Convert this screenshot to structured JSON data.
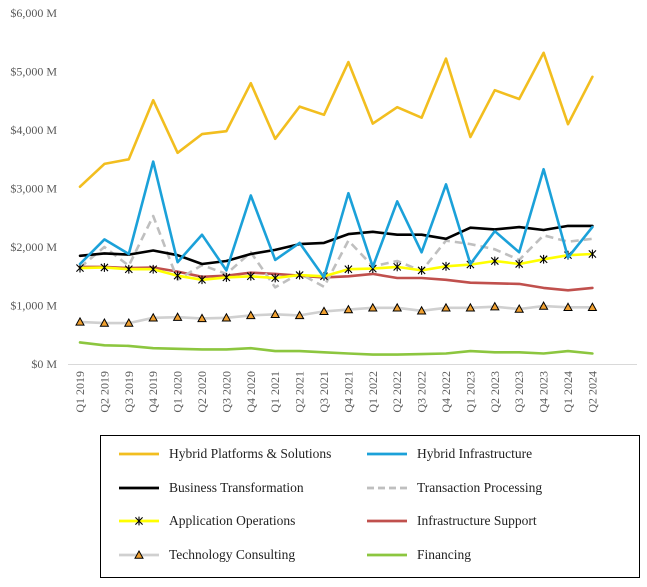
{
  "chart_data": {
    "type": "line",
    "title": "",
    "xlabel": "",
    "ylabel": "",
    "ylim": [
      0,
      6000
    ],
    "yticks": [
      0,
      1000,
      2000,
      3000,
      4000,
      5000,
      6000
    ],
    "ytick_labels": [
      "$0 M",
      "$1,000 M",
      "$2,000 M",
      "$3,000 M",
      "$4,000 M",
      "$5,000 M",
      "$6,000 M"
    ],
    "grid": false,
    "legend_position": "bottom",
    "categories": [
      "Q1 2019",
      "Q2 2019",
      "Q3 2019",
      "Q4 2019",
      "Q1 2020",
      "Q2 2020",
      "Q3 2020",
      "Q4 2020",
      "Q1 2021",
      "Q2 2021",
      "Q3 2021",
      "Q4 2021",
      "Q1 2022",
      "Q2 2022",
      "Q3 2022",
      "Q4 2022",
      "Q1 2023",
      "Q2 2023",
      "Q3 2023",
      "Q4 2023",
      "Q1 2024",
      "Q2 2024"
    ],
    "series": [
      {
        "name": "Hybrid Platforms & Solutions",
        "color": "#F2BE1F",
        "style": "solid",
        "marker": "none",
        "values": [
          3030,
          3420,
          3500,
          4510,
          3610,
          3930,
          3980,
          4800,
          3850,
          4400,
          4260,
          5160,
          4110,
          4390,
          4210,
          5220,
          3880,
          4680,
          4530,
          5320,
          4100,
          4910
        ]
      },
      {
        "name": "Hybrid Infrastructure",
        "color": "#1BA1D9",
        "style": "solid",
        "marker": "none",
        "values": [
          1710,
          2130,
          1880,
          3460,
          1740,
          2210,
          1600,
          2880,
          1780,
          2070,
          1480,
          2920,
          1660,
          2780,
          1910,
          3070,
          1710,
          2270,
          1910,
          3330,
          1820,
          2340
        ]
      },
      {
        "name": "Business Transformation",
        "color": "#000000",
        "style": "solid",
        "marker": "none",
        "values": [
          1850,
          1890,
          1870,
          1940,
          1860,
          1710,
          1760,
          1880,
          1950,
          2050,
          2070,
          2220,
          2260,
          2210,
          2210,
          2140,
          2330,
          2300,
          2340,
          2290,
          2360,
          2360
        ]
      },
      {
        "name": "Transaction Processing",
        "color": "#BFBFBF",
        "style": "dashed",
        "marker": "none",
        "values": [
          1650,
          2000,
          1680,
          2530,
          1440,
          1690,
          1540,
          1910,
          1310,
          1550,
          1320,
          2110,
          1670,
          1760,
          1590,
          2110,
          2050,
          1960,
          1780,
          2200,
          2090,
          2140
        ]
      },
      {
        "name": "Application Operations",
        "color": "#FFFF00",
        "style": "solid",
        "marker": "star",
        "values": [
          1640,
          1650,
          1620,
          1620,
          1510,
          1440,
          1480,
          1500,
          1470,
          1520,
          1500,
          1620,
          1630,
          1660,
          1600,
          1670,
          1700,
          1760,
          1710,
          1790,
          1860,
          1880
        ]
      },
      {
        "name": "Infrastructure Support",
        "color": "#C0504D",
        "style": "solid",
        "marker": "none",
        "values": [
          1660,
          1660,
          1640,
          1650,
          1580,
          1490,
          1510,
          1560,
          1540,
          1510,
          1480,
          1500,
          1540,
          1470,
          1470,
          1440,
          1390,
          1380,
          1370,
          1300,
          1260,
          1300
        ]
      },
      {
        "name": "Technology Consulting",
        "color": "#D0D0D0",
        "style": "solid",
        "marker": "triangle",
        "values": [
          720,
          700,
          700,
          790,
          800,
          780,
          790,
          830,
          850,
          830,
          900,
          930,
          960,
          960,
          910,
          960,
          960,
          980,
          940,
          990,
          970,
          970
        ]
      },
      {
        "name": "Financing",
        "color": "#8CC63F",
        "style": "solid",
        "marker": "none",
        "values": [
          370,
          320,
          310,
          270,
          260,
          250,
          250,
          270,
          220,
          220,
          200,
          180,
          160,
          160,
          170,
          180,
          220,
          200,
          200,
          180,
          220,
          180
        ]
      }
    ]
  }
}
